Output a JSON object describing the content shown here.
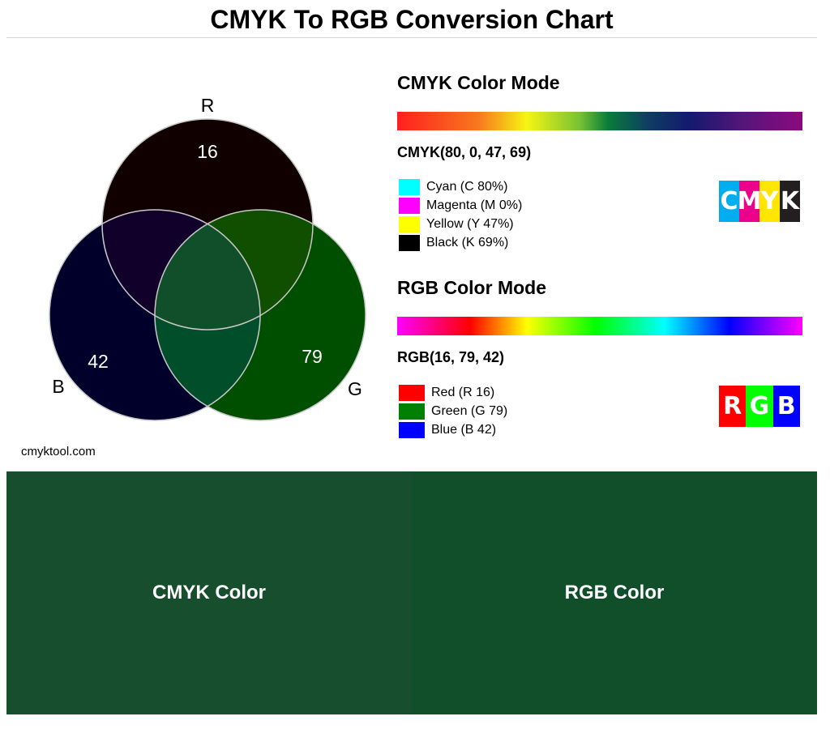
{
  "page": {
    "title": "CMYK To RGB Conversion Chart",
    "site": "cmyktool.com"
  },
  "venn": {
    "labels": {
      "r": "R",
      "g": "G",
      "b": "B"
    },
    "values": {
      "r": "16",
      "g": "79",
      "b": "42"
    },
    "colors": {
      "r": "#100000",
      "g": "#004f00",
      "b": "#00002a",
      "rb": "#10002a",
      "rg": "#104f00",
      "gb": "#004f2a",
      "rgb": "#104f2a",
      "stroke": "#c8c8c8"
    }
  },
  "cmyk": {
    "heading": "CMYK Color Mode",
    "code": "CMYK(80, 0, 47, 69)",
    "items": [
      {
        "label": "Cyan (C 80%)",
        "color": "#00ffff"
      },
      {
        "label": "Magenta (M 0%)",
        "color": "#ff00ff"
      },
      {
        "label": "Yellow (Y 47%)",
        "color": "#ffff00"
      },
      {
        "label": "Black (K 69%)",
        "color": "#000000"
      }
    ],
    "logo": [
      {
        "letter": "C",
        "color": "#00aeef"
      },
      {
        "letter": "M",
        "color": "#ec008c"
      },
      {
        "letter": "Y",
        "color": "#ffe600"
      },
      {
        "letter": "K",
        "color": "#231f20"
      }
    ]
  },
  "rgb": {
    "heading": "RGB Color Mode",
    "code": "RGB(16, 79, 42)",
    "items": [
      {
        "label": "Red (R 16)",
        "color": "#ff0000"
      },
      {
        "label": "Green (G 79)",
        "color": "#008000"
      },
      {
        "label": "Blue (B 42)",
        "color": "#0000ff"
      }
    ],
    "logo": [
      {
        "letter": "R",
        "color": "#ff0000"
      },
      {
        "letter": "G",
        "color": "#00ff00"
      },
      {
        "letter": "B",
        "color": "#0000ff"
      }
    ]
  },
  "preview": {
    "cmyk_label": "CMYK Color",
    "cmyk_color": "#174f2e",
    "rgb_label": "RGB Color",
    "rgb_color": "#104f2a"
  }
}
